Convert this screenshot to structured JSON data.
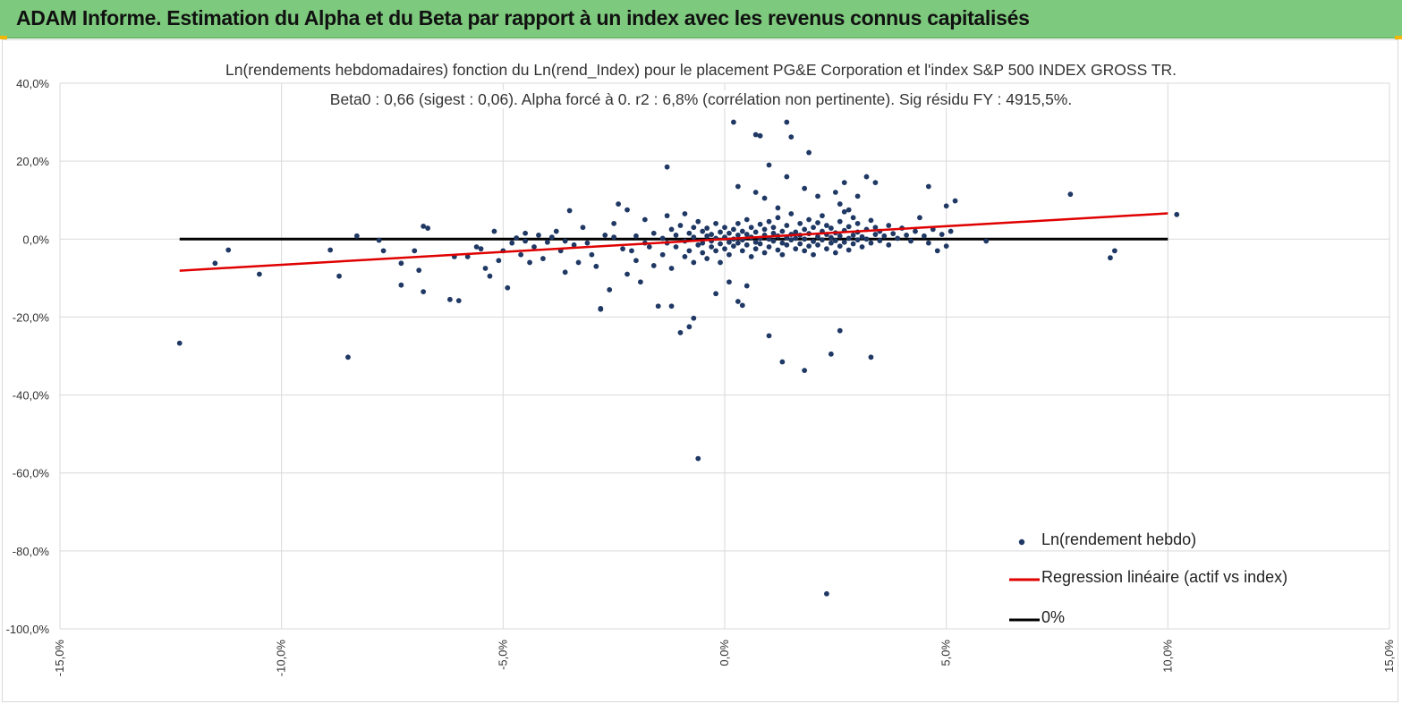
{
  "header": {
    "title": "ADAM Informe. Estimation du Alpha et du Beta par rapport à un index avec les revenus connus capitalisés"
  },
  "colors": {
    "banner": "#7dc97d",
    "points": "#1f3864",
    "regression": "#e00000",
    "zero_line": "#000000",
    "grid": "#d9d9d9"
  },
  "chart_data": {
    "type": "scatter",
    "title": "Ln(rendements hebdomadaires) fonction du Ln(rend_Index) pour le placement PG&E Corporation et l'index S&P  500 INDEX GROSS TR.",
    "subtitle": "Beta0 : 0,66 (sigest : 0,06). Alpha forcé à 0. r2 : 6,8% (corrélation non pertinente). Sig résidu FY : 4915,5%.",
    "xlabel": "",
    "ylabel": "",
    "xlim": [
      -0.15,
      0.15
    ],
    "ylim": [
      -1.0,
      0.4
    ],
    "x_ticks": [
      -0.15,
      -0.1,
      -0.05,
      0.0,
      0.05,
      0.1,
      0.15
    ],
    "x_tick_labels": [
      "-15,0%",
      "-10,0%",
      "-5,0%",
      "0,0%",
      "5,0%",
      "10,0%",
      "15,0%"
    ],
    "y_ticks": [
      0.4,
      0.2,
      0.0,
      -0.2,
      -0.4,
      -0.6,
      -0.8,
      -1.0
    ],
    "y_tick_labels": [
      "40,0%",
      "20,0%",
      "0,0%",
      "-20,0%",
      "-40,0%",
      "-60,0%",
      "-80,0%",
      "-100,0%"
    ],
    "grid": true,
    "legend_position": "bottom-right",
    "series": [
      {
        "name": "Ln(rendement hebdo)",
        "kind": "scatter",
        "points": [
          [
            -0.123,
            -0.267
          ],
          [
            -0.115,
            -0.062
          ],
          [
            -0.112,
            -0.028
          ],
          [
            -0.105,
            -0.09
          ],
          [
            -0.089,
            -0.028
          ],
          [
            -0.087,
            -0.095
          ],
          [
            -0.085,
            -0.303
          ],
          [
            -0.083,
            0.008
          ],
          [
            -0.078,
            -0.003
          ],
          [
            -0.077,
            -0.03
          ],
          [
            -0.073,
            -0.062
          ],
          [
            -0.073,
            -0.118
          ],
          [
            -0.07,
            -0.03
          ],
          [
            -0.069,
            -0.08
          ],
          [
            -0.068,
            0.033
          ],
          [
            -0.068,
            -0.135
          ],
          [
            -0.067,
            0.028
          ],
          [
            -0.062,
            -0.155
          ],
          [
            -0.061,
            -0.045
          ],
          [
            -0.06,
            -0.158
          ],
          [
            -0.058,
            -0.045
          ],
          [
            -0.056,
            -0.02
          ],
          [
            -0.055,
            -0.025
          ],
          [
            -0.054,
            -0.075
          ],
          [
            -0.053,
            -0.095
          ],
          [
            -0.052,
            0.02
          ],
          [
            -0.051,
            -0.055
          ],
          [
            -0.05,
            -0.03
          ],
          [
            -0.049,
            -0.125
          ],
          [
            -0.048,
            -0.01
          ],
          [
            -0.047,
            0.003
          ],
          [
            -0.046,
            -0.04
          ],
          [
            -0.045,
            -0.005
          ],
          [
            -0.045,
            0.015
          ],
          [
            -0.044,
            -0.06
          ],
          [
            -0.043,
            -0.02
          ],
          [
            -0.042,
            0.01
          ],
          [
            -0.041,
            -0.05
          ],
          [
            -0.04,
            -0.008
          ],
          [
            -0.039,
            0.005
          ],
          [
            -0.038,
            0.02
          ],
          [
            -0.037,
            -0.03
          ],
          [
            -0.036,
            -0.085
          ],
          [
            -0.036,
            -0.005
          ],
          [
            -0.035,
            0.073
          ],
          [
            -0.034,
            -0.015
          ],
          [
            -0.033,
            -0.06
          ],
          [
            -0.032,
            0.03
          ],
          [
            -0.031,
            -0.01
          ],
          [
            -0.03,
            -0.04
          ],
          [
            -0.029,
            -0.07
          ],
          [
            -0.028,
            -0.18
          ],
          [
            -0.027,
            0.01
          ],
          [
            -0.026,
            -0.13
          ],
          [
            -0.025,
            0.005
          ],
          [
            -0.025,
            0.04
          ],
          [
            -0.024,
            0.09
          ],
          [
            -0.023,
            -0.025
          ],
          [
            -0.022,
            0.075
          ],
          [
            -0.022,
            -0.09
          ],
          [
            -0.021,
            -0.03
          ],
          [
            -0.02,
            0.008
          ],
          [
            -0.02,
            -0.055
          ],
          [
            -0.019,
            -0.11
          ],
          [
            -0.018,
            -0.01
          ],
          [
            -0.018,
            0.05
          ],
          [
            -0.017,
            -0.02
          ],
          [
            -0.016,
            -0.068
          ],
          [
            -0.016,
            0.015
          ],
          [
            -0.015,
            -0.172
          ],
          [
            -0.014,
            0.002
          ],
          [
            -0.014,
            -0.04
          ],
          [
            -0.013,
            0.06
          ],
          [
            -0.013,
            -0.01
          ],
          [
            -0.012,
            0.025
          ],
          [
            -0.012,
            -0.075
          ],
          [
            -0.011,
            -0.02
          ],
          [
            -0.011,
            0.01
          ],
          [
            -0.01,
            -0.24
          ],
          [
            -0.01,
            0.035
          ],
          [
            -0.009,
            -0.005
          ],
          [
            -0.009,
            -0.045
          ],
          [
            -0.008,
            0.015
          ],
          [
            -0.008,
            -0.03
          ],
          [
            -0.007,
            0.005
          ],
          [
            -0.007,
            0.03
          ],
          [
            -0.007,
            -0.06
          ],
          [
            -0.006,
            -0.015
          ],
          [
            -0.006,
            0.045
          ],
          [
            -0.005,
            -0.01
          ],
          [
            -0.005,
            0.02
          ],
          [
            -0.005,
            -0.035
          ],
          [
            -0.004,
            0.008
          ],
          [
            -0.004,
            -0.05
          ],
          [
            -0.004,
            0.028
          ],
          [
            -0.003,
            -0.02
          ],
          [
            -0.003,
            0.012
          ],
          [
            -0.003,
            -0.005
          ],
          [
            -0.002,
            0.04
          ],
          [
            -0.002,
            -0.03
          ],
          [
            -0.002,
            0.002
          ],
          [
            -0.001,
            -0.012
          ],
          [
            -0.001,
            0.018
          ],
          [
            -0.001,
            -0.06
          ],
          [
            0.0,
            0.005
          ],
          [
            0.0,
            -0.025
          ],
          [
            0.0,
            0.03
          ],
          [
            0.001,
            -0.008
          ],
          [
            0.001,
            0.015
          ],
          [
            0.001,
            -0.04
          ],
          [
            0.002,
            0.0
          ],
          [
            0.002,
            0.025
          ],
          [
            0.002,
            -0.018
          ],
          [
            0.003,
            0.04
          ],
          [
            0.003,
            -0.01
          ],
          [
            0.003,
            0.01
          ],
          [
            0.004,
            -0.03
          ],
          [
            0.004,
            0.02
          ],
          [
            0.004,
            -0.002
          ],
          [
            0.005,
            0.05
          ],
          [
            0.005,
            -0.015
          ],
          [
            0.005,
            0.012
          ],
          [
            0.006,
            -0.045
          ],
          [
            0.006,
            0.005
          ],
          [
            0.006,
            0.03
          ],
          [
            0.007,
            -0.008
          ],
          [
            0.007,
            0.018
          ],
          [
            0.007,
            -0.025
          ],
          [
            0.008,
            0.002
          ],
          [
            0.008,
            0.038
          ],
          [
            0.008,
            -0.012
          ],
          [
            0.009,
            0.01
          ],
          [
            0.009,
            -0.035
          ],
          [
            0.009,
            0.025
          ],
          [
            0.01,
            0.0
          ],
          [
            0.01,
            0.045
          ],
          [
            0.01,
            -0.02
          ],
          [
            0.011,
            0.015
          ],
          [
            0.011,
            -0.005
          ],
          [
            0.011,
            0.03
          ],
          [
            0.012,
            -0.028
          ],
          [
            0.012,
            0.008
          ],
          [
            0.012,
            0.055
          ],
          [
            0.013,
            -0.01
          ],
          [
            0.013,
            0.02
          ],
          [
            0.013,
            -0.04
          ],
          [
            0.014,
            0.004
          ],
          [
            0.014,
            0.035
          ],
          [
            0.014,
            -0.015
          ],
          [
            0.015,
            0.012
          ],
          [
            0.015,
            -0.002
          ],
          [
            0.015,
            0.065
          ],
          [
            0.016,
            -0.025
          ],
          [
            0.016,
            0.018
          ],
          [
            0.016,
            0.002
          ],
          [
            0.017,
            0.04
          ],
          [
            0.017,
            -0.012
          ],
          [
            0.017,
            0.01
          ],
          [
            0.018,
            -0.03
          ],
          [
            0.018,
            0.025
          ],
          [
            0.018,
            0.0
          ],
          [
            0.019,
            0.05
          ],
          [
            0.019,
            -0.018
          ],
          [
            0.019,
            0.014
          ],
          [
            0.02,
            -0.006
          ],
          [
            0.02,
            0.03
          ],
          [
            0.02,
            -0.04
          ],
          [
            0.021,
            0.006
          ],
          [
            0.021,
            0.042
          ],
          [
            0.021,
            -0.015
          ],
          [
            0.022,
            0.02
          ],
          [
            0.022,
            -0.002
          ],
          [
            0.022,
            0.06
          ],
          [
            0.023,
            -0.025
          ],
          [
            0.023,
            0.012
          ],
          [
            0.023,
            0.035
          ],
          [
            0.024,
            -0.01
          ],
          [
            0.024,
            0.004
          ],
          [
            0.024,
            0.028
          ],
          [
            0.025,
            -0.035
          ],
          [
            0.025,
            0.016
          ],
          [
            0.025,
            -0.004
          ],
          [
            0.026,
            0.045
          ],
          [
            0.026,
            -0.018
          ],
          [
            0.026,
            0.008
          ],
          [
            0.027,
            0.022
          ],
          [
            0.027,
            -0.008
          ],
          [
            0.027,
            0.07
          ],
          [
            0.028,
            0.002
          ],
          [
            0.028,
            -0.028
          ],
          [
            0.028,
            0.032
          ],
          [
            0.029,
            0.01
          ],
          [
            0.029,
            -0.012
          ],
          [
            0.029,
            0.055
          ],
          [
            0.03,
            0.018
          ],
          [
            0.03,
            -0.002
          ],
          [
            0.03,
            0.04
          ],
          [
            0.031,
            0.006
          ],
          [
            0.031,
            -0.02
          ],
          [
            0.032,
            0.025
          ],
          [
            0.032,
            0.0
          ],
          [
            0.033,
            0.048
          ],
          [
            0.033,
            -0.01
          ],
          [
            0.034,
            0.012
          ],
          [
            0.034,
            0.03
          ],
          [
            0.035,
            -0.004
          ],
          [
            0.035,
            0.02
          ],
          [
            0.036,
            0.008
          ],
          [
            0.037,
            -0.015
          ],
          [
            0.037,
            0.035
          ],
          [
            0.038,
            0.014
          ],
          [
            0.039,
            0.002
          ],
          [
            0.04,
            0.028
          ],
          [
            0.041,
            0.01
          ],
          [
            0.042,
            -0.005
          ],
          [
            0.043,
            0.02
          ],
          [
            0.044,
            0.055
          ],
          [
            0.045,
            0.008
          ],
          [
            0.046,
            -0.01
          ],
          [
            0.047,
            0.025
          ],
          [
            0.048,
            -0.03
          ],
          [
            0.049,
            0.012
          ],
          [
            0.05,
            0.085
          ],
          [
            0.051,
            0.02
          ],
          [
            0.052,
            0.098
          ],
          [
            0.025,
            0.12
          ],
          [
            0.027,
            0.145
          ],
          [
            0.032,
            0.16
          ],
          [
            0.034,
            0.145
          ],
          [
            0.03,
            0.11
          ],
          [
            0.026,
            0.09
          ],
          [
            0.028,
            0.075
          ],
          [
            0.046,
            0.135
          ],
          [
            0.05,
            -0.018
          ],
          [
            0.059,
            -0.005
          ],
          [
            0.078,
            0.115
          ],
          [
            0.087,
            -0.048
          ],
          [
            0.088,
            -0.03
          ],
          [
            0.102,
            0.063
          ],
          [
            0.002,
            0.3
          ],
          [
            0.007,
            0.268
          ],
          [
            0.008,
            0.265
          ],
          [
            0.01,
            0.19
          ],
          [
            0.014,
            0.3
          ],
          [
            0.015,
            0.262
          ],
          [
            0.019,
            0.222
          ],
          [
            0.007,
            0.12
          ],
          [
            0.003,
            0.135
          ],
          [
            0.009,
            0.105
          ],
          [
            0.014,
            0.16
          ],
          [
            0.018,
            0.13
          ],
          [
            0.021,
            0.11
          ],
          [
            -0.013,
            0.185
          ],
          [
            -0.009,
            0.065
          ],
          [
            0.012,
            0.08
          ],
          [
            -0.028,
            -0.178
          ],
          [
            -0.012,
            -0.172
          ],
          [
            -0.008,
            -0.225
          ],
          [
            -0.007,
            -0.203
          ],
          [
            0.003,
            -0.16
          ],
          [
            0.004,
            -0.17
          ],
          [
            0.005,
            -0.12
          ],
          [
            0.01,
            -0.248
          ],
          [
            0.013,
            -0.315
          ],
          [
            0.018,
            -0.337
          ],
          [
            0.024,
            -0.295
          ],
          [
            0.026,
            -0.235
          ],
          [
            0.033,
            -0.303
          ],
          [
            -0.006,
            -0.563
          ],
          [
            0.023,
            -0.91
          ],
          [
            -0.002,
            -0.14
          ],
          [
            0.001,
            -0.11
          ]
        ]
      },
      {
        "name": "Regression linéaire (actif vs index)",
        "kind": "line",
        "x": [
          -0.123,
          0.1
        ],
        "y": [
          -0.081,
          0.066
        ]
      },
      {
        "name": "0%",
        "kind": "line",
        "x": [
          -0.123,
          0.1
        ],
        "y": [
          0.0,
          0.0
        ]
      }
    ]
  }
}
